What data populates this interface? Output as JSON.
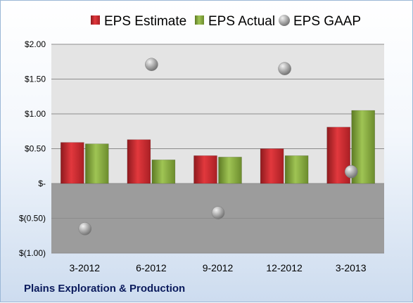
{
  "company_label": "Plains Exploration & Production",
  "colors": {
    "estimate": "#c0262b",
    "actual": "#7e9e3a",
    "gaap": "#a6a6a6",
    "plot_upper": "#e4e4e4",
    "plot_lower": "#9c9c9c",
    "grid": "#8c8c8c"
  },
  "chart_data": {
    "type": "bar",
    "title": "",
    "xlabel": "",
    "ylabel": "",
    "categories": [
      "3-2012",
      "6-2012",
      "9-2012",
      "12-2012",
      "3-2013"
    ],
    "series": [
      {
        "name": "EPS Estimate",
        "kind": "bar",
        "values": [
          0.59,
          0.63,
          0.4,
          0.5,
          0.81
        ]
      },
      {
        "name": "EPS Actual",
        "kind": "bar",
        "values": [
          0.57,
          0.34,
          0.38,
          0.4,
          1.05
        ]
      },
      {
        "name": "EPS GAAP",
        "kind": "marker",
        "values": [
          -0.65,
          1.71,
          -0.42,
          1.65,
          0.17
        ]
      }
    ],
    "ylim": [
      -1.0,
      2.0
    ],
    "yticks": [
      2.0,
      1.5,
      1.0,
      0.5,
      0.0,
      -0.5,
      -1.0
    ],
    "ytick_labels": [
      "$2.00",
      "$1.50",
      "$1.00",
      "$0.50",
      "$-",
      "$(0.50)",
      "$(1.00)"
    ],
    "grid": true,
    "legend_position": "top"
  }
}
